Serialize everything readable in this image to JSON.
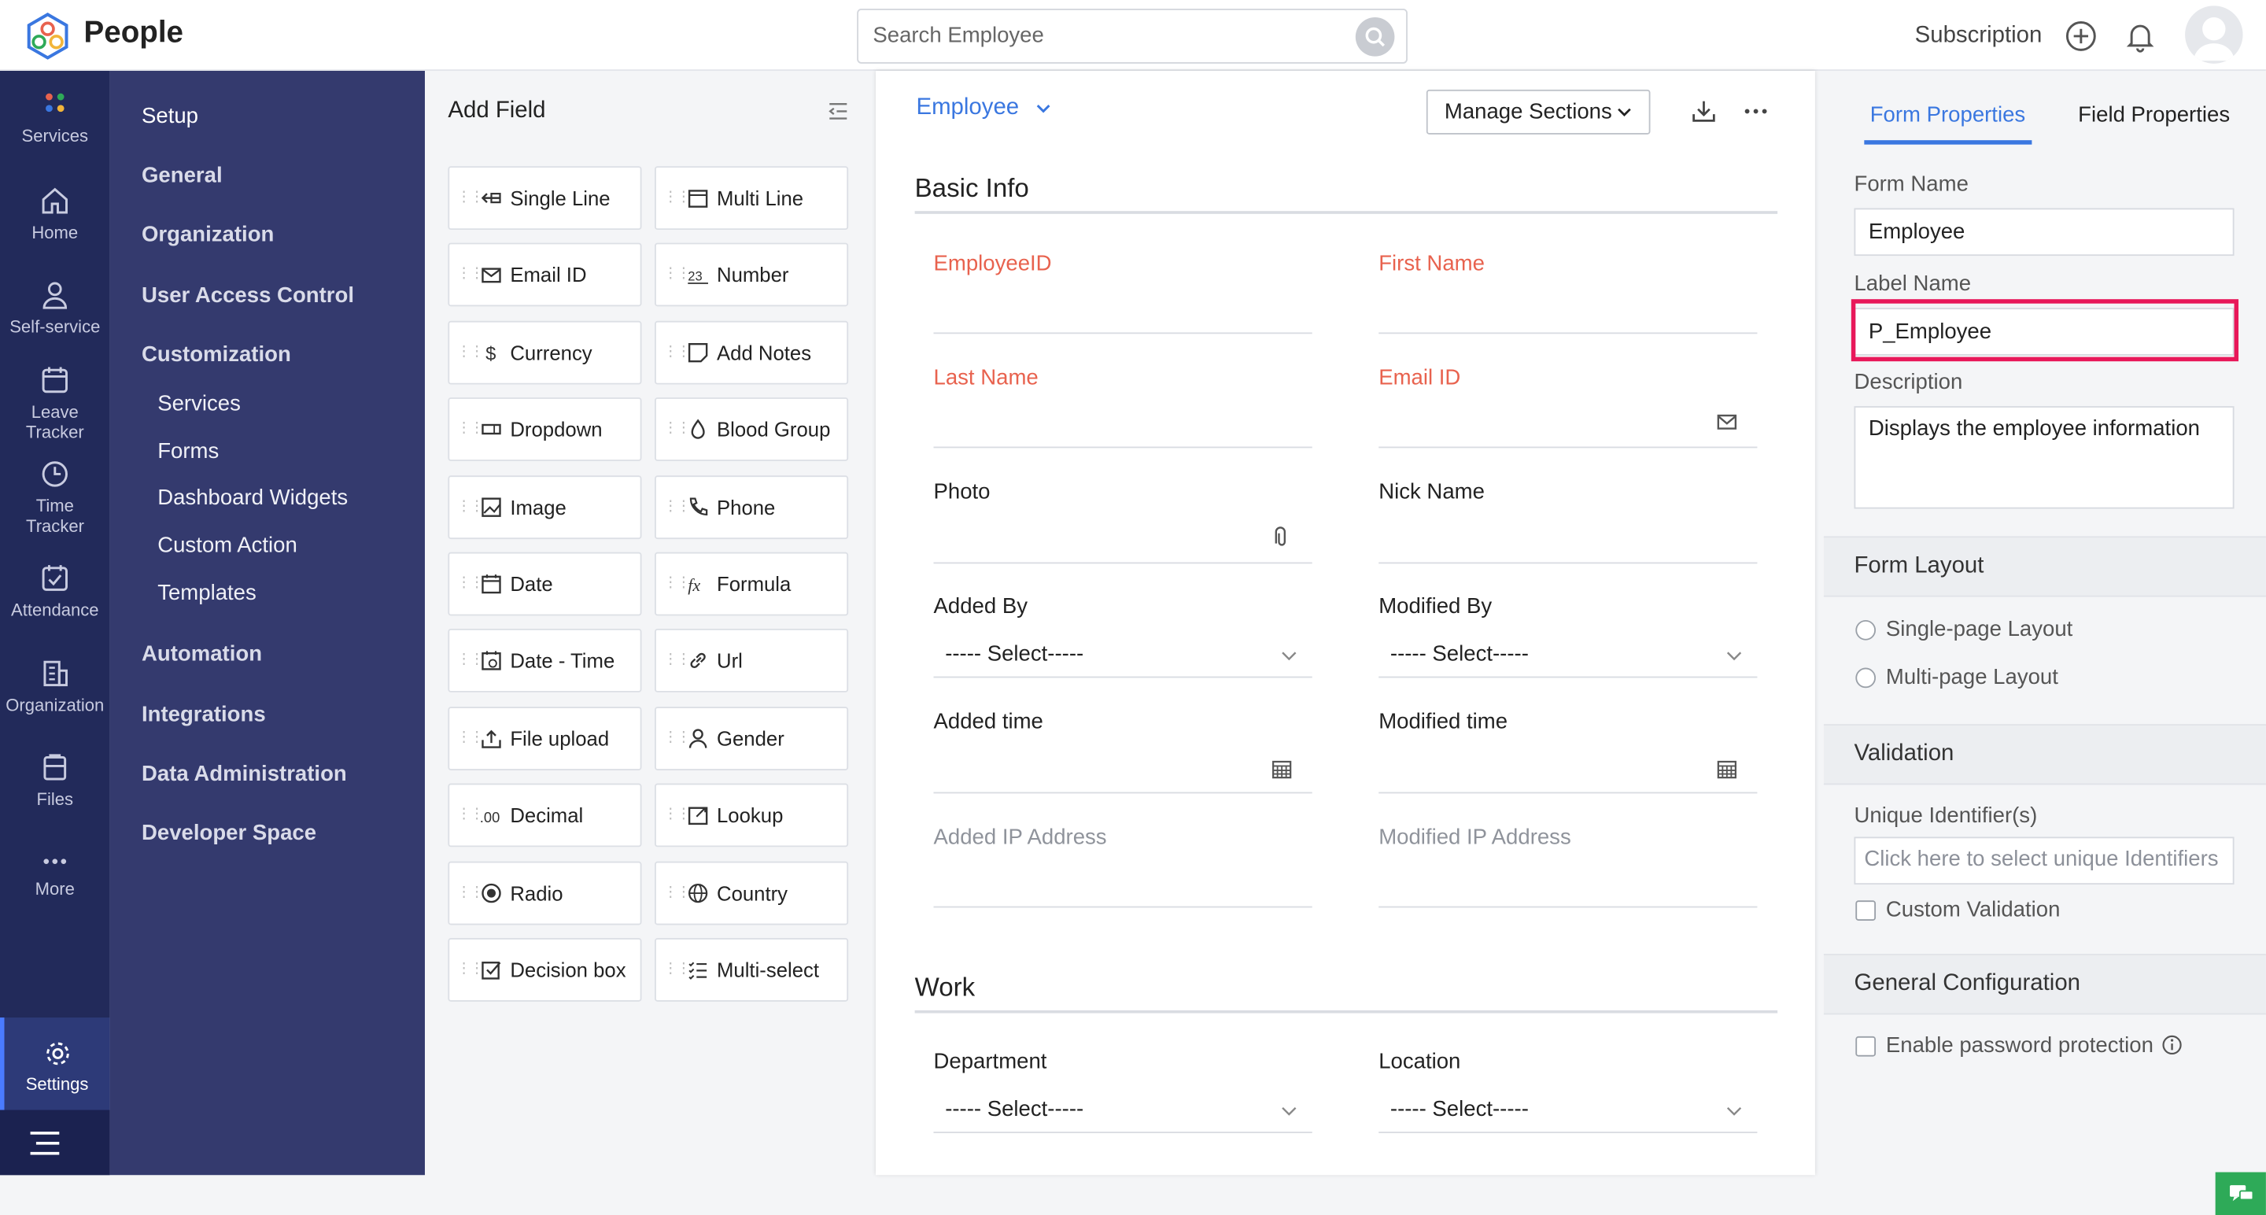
{
  "header": {
    "app_name": "People",
    "search_placeholder": "Search Employee",
    "subscription": "Subscription"
  },
  "left_nav": {
    "items": [
      {
        "label": "Services",
        "icon": "grid-dots-icon"
      },
      {
        "label": "Home",
        "icon": "home-icon"
      },
      {
        "label": "Self-service",
        "icon": "user-icon"
      },
      {
        "label": "Leave Tracker",
        "icon": "calendar-icon"
      },
      {
        "label": "Time Tracker",
        "icon": "clock-icon"
      },
      {
        "label": "Attendance",
        "icon": "attendance-icon"
      },
      {
        "label": "Organization",
        "icon": "building-icon"
      },
      {
        "label": "Files",
        "icon": "files-icon"
      },
      {
        "label": "More",
        "icon": "more-dots-icon"
      },
      {
        "label": "Settings",
        "icon": "gear-icon"
      }
    ]
  },
  "settings_sidebar": {
    "items": [
      "Setup",
      "General",
      "Organization",
      "User Access Control",
      "Customization"
    ],
    "customization_children": [
      "Services",
      "Forms",
      "Dashboard Widgets",
      "Custom Action",
      "Templates"
    ],
    "items_after": [
      "Automation",
      "Integrations",
      "Data Administration",
      "Developer Space"
    ]
  },
  "add_field": {
    "title": "Add Field",
    "fields": [
      {
        "label": "Single Line",
        "icon": "single-line-icon"
      },
      {
        "label": "Multi Line",
        "icon": "multi-line-icon"
      },
      {
        "label": "Email ID",
        "icon": "email-icon"
      },
      {
        "label": "Number",
        "icon": "number-icon"
      },
      {
        "label": "Currency",
        "icon": "currency-icon"
      },
      {
        "label": "Add Notes",
        "icon": "notes-icon"
      },
      {
        "label": "Dropdown",
        "icon": "dropdown-icon"
      },
      {
        "label": "Blood Group",
        "icon": "drop-icon"
      },
      {
        "label": "Image",
        "icon": "image-icon"
      },
      {
        "label": "Phone",
        "icon": "phone-icon"
      },
      {
        "label": "Date",
        "icon": "date-icon"
      },
      {
        "label": "Formula",
        "icon": "formula-icon"
      },
      {
        "label": "Date - Time",
        "icon": "date-time-icon"
      },
      {
        "label": "Url",
        "icon": "link-icon"
      },
      {
        "label": "File upload",
        "icon": "upload-icon"
      },
      {
        "label": "Gender",
        "icon": "person-icon"
      },
      {
        "label": "Decimal",
        "icon": "decimal-icon"
      },
      {
        "label": "Lookup",
        "icon": "lookup-icon"
      },
      {
        "label": "Radio",
        "icon": "radio-icon"
      },
      {
        "label": "Country",
        "icon": "globe-icon"
      },
      {
        "label": "Decision box",
        "icon": "checkbox-icon"
      },
      {
        "label": "Multi-select",
        "icon": "list-icon"
      }
    ]
  },
  "form": {
    "name": "Employee",
    "manage_sections": "Manage Sections",
    "sections": [
      {
        "title": "Basic Info"
      },
      {
        "title": "Work"
      }
    ],
    "fields": {
      "employee_id": "EmployeeID",
      "first_name": "First Name",
      "last_name": "Last Name",
      "email_id": "Email ID",
      "photo": "Photo",
      "nick_name": "Nick Name",
      "added_by": "Added By",
      "modified_by": "Modified By",
      "added_time": "Added time",
      "modified_time": "Modified time",
      "added_ip": "Added IP Address",
      "modified_ip": "Modified IP Address",
      "department": "Department",
      "location": "Location",
      "select_placeholder": "----- Select-----"
    }
  },
  "properties": {
    "tabs": [
      "Form Properties",
      "Field Properties"
    ],
    "form_name_label": "Form Name",
    "form_name_value": "Employee",
    "label_name_label": "Label Name",
    "label_name_value": "P_Employee",
    "description_label": "Description",
    "description_value": "Displays the employee information",
    "form_layout_title": "Form Layout",
    "layout_options": [
      "Single-page Layout",
      "Multi-page Layout"
    ],
    "validation_title": "Validation",
    "unique_identifiers_label": "Unique Identifier(s)",
    "unique_identifiers_placeholder": "Click here to select unique Identifiers",
    "custom_validation": "Custom Validation",
    "general_config_title": "General Configuration",
    "password_protection": "Enable password protection"
  },
  "colors": {
    "nav_bg": "#222a5a",
    "sidebar_bg": "#343a6e",
    "accent": "#3a77e0",
    "required_label": "#e8624e",
    "highlight": "#e8185a"
  }
}
